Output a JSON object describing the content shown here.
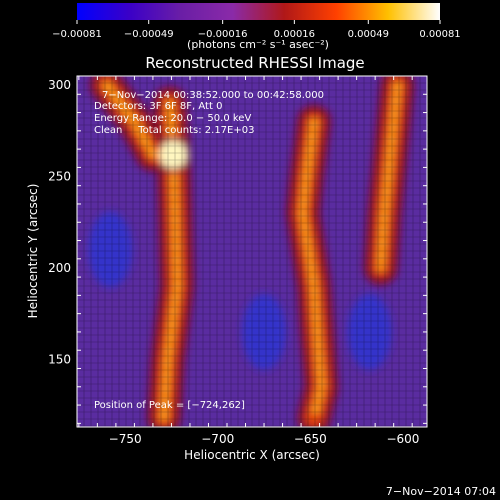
{
  "chart_data": {
    "type": "heatmap",
    "title": "Reconstructed RHESSI Image",
    "xlabel": "Heliocentric X (arcsec)",
    "ylabel": "Heliocentric Y (arcsec)",
    "xlim": [
      -776,
      -587
    ],
    "ylim": [
      113,
      305
    ],
    "xticks": [
      -750,
      -700,
      -650,
      -600
    ],
    "yticks": [
      150,
      200,
      250,
      300
    ],
    "xtick_labels": [
      "−750",
      "−700",
      "−650",
      "−600"
    ],
    "ytick_labels": [
      "150",
      "200",
      "250",
      "300"
    ],
    "colorbar": {
      "label": "(photons cm⁻² s⁻¹ asec⁻²)",
      "range": [
        -0.00081,
        0.00081
      ],
      "ticks": [
        -0.00081,
        -0.00049,
        -0.00016,
        0.00016,
        0.00049,
        0.00081
      ],
      "tick_labels": [
        "−0.00081",
        "−0.00049",
        "−0.00016",
        "0.00016",
        "0.00049",
        "0.00081"
      ],
      "colors": [
        "#0000ff",
        "#3a00c8",
        "#6a1ea6",
        "#8a2aa8",
        "#b01818",
        "#ff4000",
        "#ffc000",
        "#ffffff"
      ]
    },
    "annotations": [
      "7−Nov−2014 00:38:52.000 to 00:42:58.000",
      "Detectors: 3F 6F 8F, Att 0",
      "Energy Range: 20.0 − 50.0 keV",
      "Clean     Total counts: 2.17E+03"
    ],
    "peak_label": "Position of Peak = [−724,262]",
    "peak": [
      -724,
      262
    ],
    "bright_ridges": [
      {
        "name": "left-ridge",
        "path": [
          [
            -729,
            118
          ],
          [
            -727,
            150
          ],
          [
            -722,
            190
          ],
          [
            -723,
            230
          ],
          [
            -724,
            262
          ],
          [
            -726,
            290
          ]
        ]
      },
      {
        "name": "left-upper-arc",
        "path": [
          [
            -760,
            300
          ],
          [
            -745,
            280
          ],
          [
            -735,
            262
          ],
          [
            -724,
            262
          ]
        ]
      },
      {
        "name": "right-ridge",
        "path": [
          [
            -648,
            280
          ],
          [
            -652,
            250
          ],
          [
            -654,
            230
          ],
          [
            -648,
            190
          ],
          [
            -646,
            160
          ],
          [
            -644,
            135
          ],
          [
            -648,
            118
          ]
        ]
      },
      {
        "name": "far-right-ridge",
        "path": [
          [
            -603,
            300
          ],
          [
            -606,
            270
          ],
          [
            -610,
            230
          ],
          [
            -612,
            200
          ]
        ]
      }
    ],
    "dark_regions": [
      {
        "name": "center-blue",
        "at": [
          -675,
          165
        ]
      },
      {
        "name": "left-blue",
        "at": [
          -758,
          210
        ]
      },
      {
        "name": "right-blue",
        "at": [
          -618,
          165
        ]
      }
    ]
  },
  "footer": {
    "timestamp": "7−Nov−2014 07:04"
  }
}
